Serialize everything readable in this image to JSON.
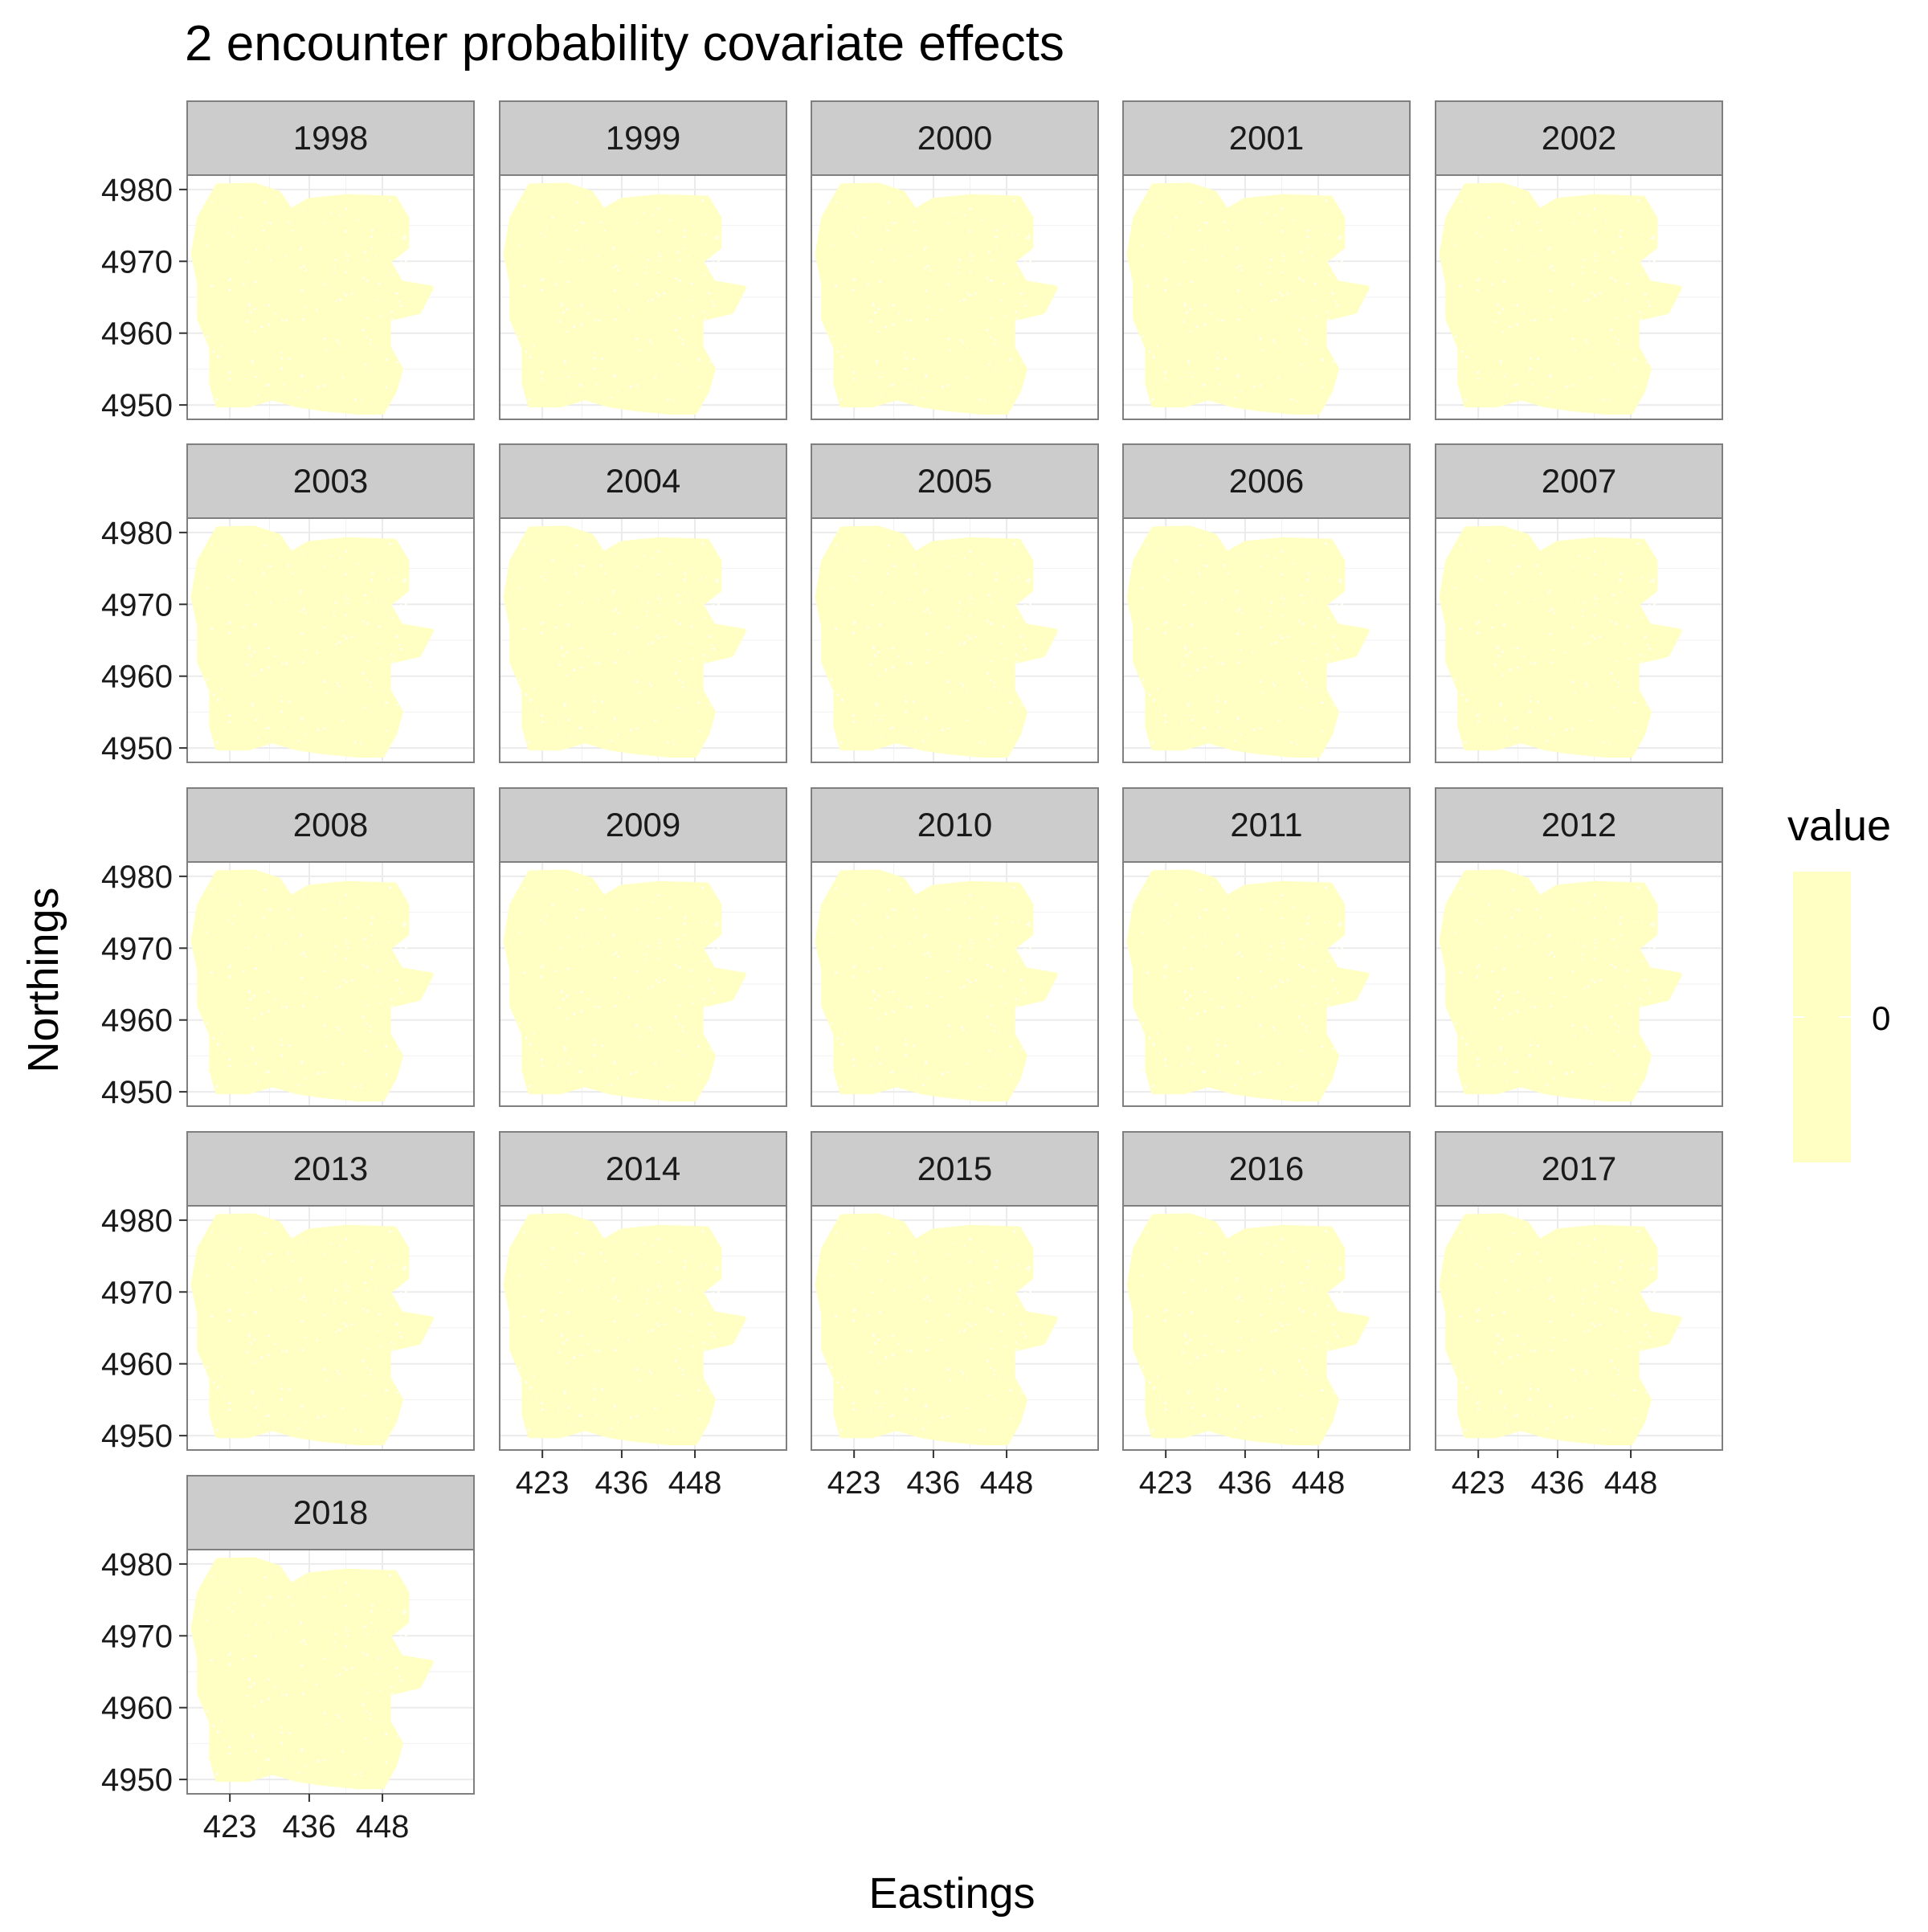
{
  "chart_data": {
    "type": "heatmap",
    "title": "2 encounter probability covariate effects",
    "xlabel": "Eastings",
    "ylabel": "Northings",
    "facets": [
      "1998",
      "1999",
      "2000",
      "2001",
      "2002",
      "2003",
      "2004",
      "2005",
      "2006",
      "2007",
      "2008",
      "2009",
      "2010",
      "2011",
      "2012",
      "2013",
      "2014",
      "2015",
      "2016",
      "2017",
      "2018"
    ],
    "facet_columns": 5,
    "x_ticks": [
      "423",
      "436",
      "448"
    ],
    "y_ticks": [
      "4980",
      "4970",
      "4960",
      "4950"
    ],
    "xlim": [
      416,
      463
    ],
    "ylim": [
      4948,
      4982
    ],
    "value": 0,
    "legend": {
      "title": "value",
      "labels": [
        "0"
      ],
      "position": "right"
    },
    "colors": {
      "fill": "#ffffc4",
      "strip": "#cccccc",
      "panel_border": "#7f7f7f",
      "grid": "#ebebeb"
    },
    "grid": true
  }
}
